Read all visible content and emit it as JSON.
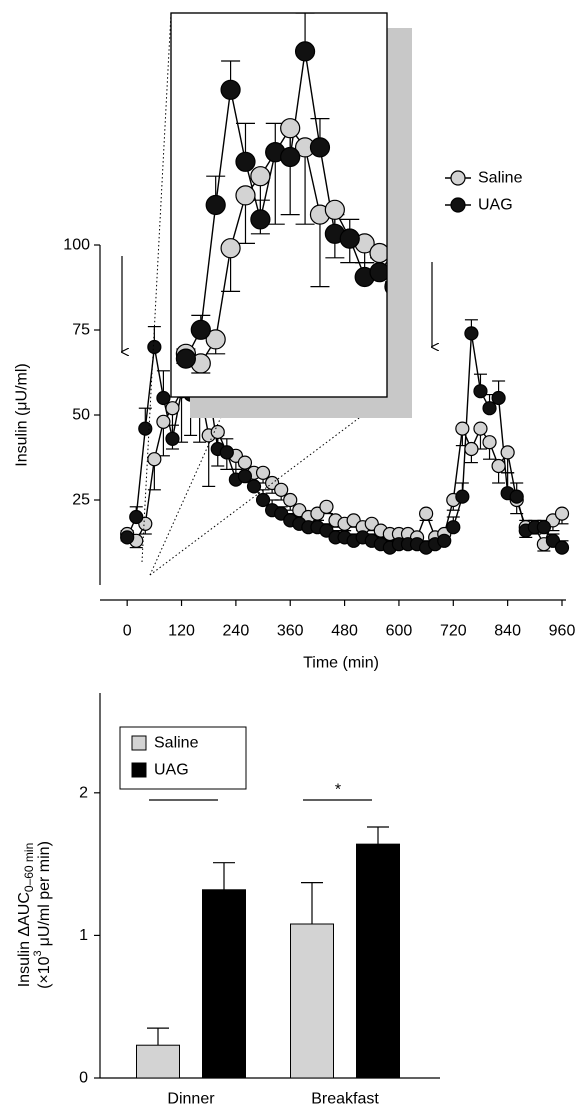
{
  "chart_data": [
    {
      "type": "line",
      "xlabel": "Time (min)",
      "ylabel": "Insulin (μU/ml)",
      "x": [
        0,
        20,
        40,
        60,
        80,
        100,
        120,
        140,
        160,
        180,
        200,
        220,
        240,
        260,
        280,
        300,
        320,
        340,
        360,
        380,
        400,
        420,
        440,
        460,
        480,
        500,
        520,
        540,
        560,
        580,
        600,
        620,
        640,
        660,
        680,
        700,
        720,
        740,
        760,
        780,
        800,
        820,
        840,
        860,
        880,
        900,
        920,
        940,
        960
      ],
      "series": [
        {
          "name": "Saline",
          "color": "#d3d3d3",
          "error_direction": "down",
          "values": [
            15,
            13,
            18,
            37,
            48,
            52,
            57,
            62,
            58,
            44,
            45,
            39,
            38,
            36,
            33,
            33,
            30,
            28,
            25,
            22,
            20,
            21,
            23,
            19,
            18,
            19,
            17,
            18,
            16,
            15,
            15,
            15,
            14,
            21,
            14,
            15,
            25,
            46,
            40,
            46,
            42,
            35,
            39,
            25,
            17,
            17,
            12,
            19,
            21
          ],
          "errors": [
            2,
            2,
            3,
            9,
            10,
            12,
            15,
            18,
            16,
            15,
            10,
            5,
            4,
            4,
            3,
            3,
            3,
            3,
            3,
            2,
            2,
            2,
            2,
            2,
            2,
            2,
            2,
            2,
            2,
            2,
            2,
            2,
            2,
            2,
            2,
            2,
            3,
            5,
            4,
            6,
            5,
            5,
            6,
            4,
            3,
            2,
            2,
            3,
            3
          ]
        },
        {
          "name": "UAG",
          "color": "#111111",
          "error_direction": "up",
          "values": [
            14,
            20,
            46,
            70,
            55,
            43,
            57,
            56,
            78,
            58,
            40,
            39,
            31,
            32,
            29,
            25,
            22,
            21,
            19,
            18,
            17,
            17,
            16,
            14,
            14,
            13,
            14,
            13,
            12,
            11,
            12,
            12,
            12,
            11,
            12,
            13,
            17,
            26,
            74,
            57,
            52,
            55,
            27,
            26,
            16,
            17,
            17,
            13,
            11
          ],
          "errors": [
            2,
            3,
            6,
            6,
            8,
            4,
            6,
            6,
            8,
            6,
            4,
            4,
            3,
            3,
            3,
            3,
            3,
            2,
            2,
            2,
            2,
            2,
            2,
            2,
            2,
            2,
            2,
            2,
            2,
            2,
            2,
            2,
            2,
            2,
            2,
            2,
            3,
            4,
            4,
            5,
            4,
            5,
            6,
            4,
            3,
            2,
            2,
            2,
            2
          ]
        }
      ],
      "xlim": [
        -60,
        960
      ],
      "ylim": [
        0,
        100
      ],
      "xticks": [
        0,
        120,
        240,
        360,
        480,
        600,
        720,
        840,
        960
      ],
      "yticks": [
        25,
        50,
        75,
        100
      ],
      "legend": "upper right",
      "inset": {
        "xlim": [
          -20,
          270
        ],
        "ylim": [
          6,
          86
        ]
      }
    },
    {
      "type": "bar",
      "ylabel": [
        "Insulin ΔAUC",
        "0–60 min",
        "(×10",
        "3",
        "μU/ml per min)"
      ],
      "categories": [
        "Dinner",
        "Breakfast"
      ],
      "series": [
        {
          "name": "Saline",
          "color": "#d3d3d3",
          "values": [
            0.23,
            1.08
          ],
          "errors": [
            0.12,
            0.29
          ]
        },
        {
          "name": "UAG",
          "color": "#000000",
          "values": [
            1.32,
            1.64
          ],
          "errors": [
            0.19,
            0.12
          ]
        }
      ],
      "ylim": [
        0,
        2.7
      ],
      "yticks": [
        0,
        1,
        2
      ],
      "annotations": [
        "**",
        "*"
      ],
      "legend": "upper left"
    }
  ]
}
